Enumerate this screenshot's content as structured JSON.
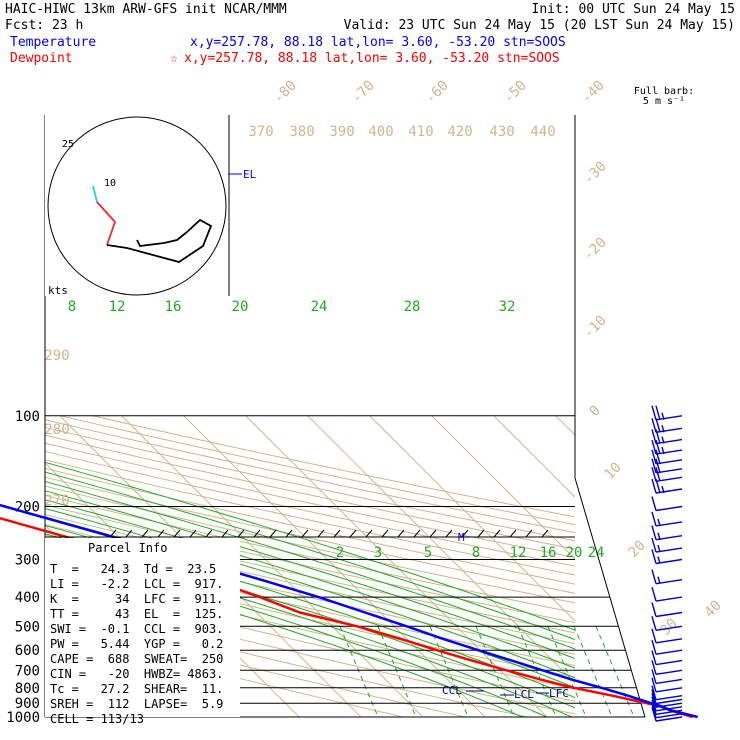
{
  "header": {
    "line1_left": "HAIC-HIWC 13km ARW-GFS init   NCAR/MMM",
    "line1_right": "Init: 00 UTC Sun 24 May 15",
    "line2_left": "Fcst:    23 h",
    "line2_right": "Valid: 23 UTC Sun 24 May 15 (20 LST Sun 24 May 15)",
    "temp_label": "Temperature",
    "temp_info": "x,y=257.78, 88.18   lat,lon=  3.60, -53.20  stn=SOOS",
    "dew_label": "Dewpoint",
    "dew_info": "x,y=257.78, 88.18   lat,lon=  3.60, -53.20  stn=SOOS",
    "star": "☆",
    "temp_color": "#0000ff",
    "dew_color": "#ff0000"
  },
  "barb_legend": {
    "line1": "Full barb:",
    "line2": "5 m s⁻¹"
  },
  "hodograph": {
    "kts_label": "kts",
    "ring_labels": [
      "25",
      "10"
    ]
  },
  "parcel_info": {
    "title": "Parcel Info",
    "rows": [
      "T  =   24.3  Td =  23.5",
      "LI =   -2.2  LCL =  917.",
      "K  =     34  LFC =  911.",
      "TT =     43  EL  =  125.",
      "SWI =  -0.1  CCL =  903.",
      "PW =   5.44  YGP =   0.2",
      "CAPE =  688  SWEAT=  250",
      "CIN =   -20  HWBZ= 4863.",
      "Tc =   27.2  SHEAR=  11.",
      "SREH =  112  LAPSE=  5.9",
      "CELL = 113/13"
    ]
  },
  "level_marks": {
    "el": "EL",
    "m": "M",
    "ccl": "CCL",
    "lcl": "LCL",
    "lfc": "LFC"
  },
  "chart_data": {
    "type": "line",
    "title": "HAIC-HIWC 13km ARW-GFS init   NCAR/MMM",
    "xlabel": "",
    "ylabel": "",
    "pressure_levels": [
      "100",
      "200",
      "300",
      "400",
      "500",
      "600",
      "700",
      "800",
      "900",
      "1000"
    ],
    "isotherm_labels": [
      "-80",
      "-70",
      "-60",
      "-50",
      "-40",
      "-30",
      "-20",
      "-10",
      "0",
      "10",
      "20",
      "30",
      "40"
    ],
    "theta_labels": [
      "370",
      "380",
      "390",
      "400",
      "410",
      "420",
      "430",
      "440",
      "290",
      "280",
      "270"
    ],
    "theta_e_labels": [
      "8",
      "12",
      "16",
      "20",
      "24",
      "28",
      "32"
    ],
    "mixing_ratio_labels": [
      "2",
      "3",
      "5",
      "8",
      "12",
      "16",
      "20",
      "24"
    ],
    "series": [
      {
        "name": "Temperature",
        "color": "#0000ff",
        "points": [
          [
            1000,
            24.3
          ],
          [
            950,
            21.1
          ],
          [
            917,
            20
          ],
          [
            900,
            19
          ],
          [
            850,
            16.5
          ],
          [
            800,
            13.5
          ],
          [
            750,
            10
          ],
          [
            700,
            6.8
          ],
          [
            650,
            3.4
          ],
          [
            600,
            -0.3
          ],
          [
            550,
            -4.2
          ],
          [
            500,
            -8
          ],
          [
            450,
            -12.5
          ],
          [
            400,
            -17.5
          ],
          [
            350,
            -24
          ],
          [
            300,
            -32
          ],
          [
            250,
            -41.5
          ],
          [
            200,
            -53.5
          ],
          [
            175,
            -60.5
          ],
          [
            150,
            -68
          ],
          [
            135,
            -73
          ],
          [
            125,
            -76
          ],
          [
            115,
            -79.5
          ],
          [
            108,
            -78.5
          ],
          [
            100,
            -74
          ]
        ]
      },
      {
        "name": "Dewpoint",
        "color": "#ff0000",
        "points": [
          [
            1000,
            23.5
          ],
          [
            950,
            20.9
          ],
          [
            917,
            19.8
          ],
          [
            900,
            18.3
          ],
          [
            850,
            14
          ],
          [
            800,
            9
          ],
          [
            750,
            5
          ],
          [
            700,
            1
          ],
          [
            650,
            -3
          ],
          [
            600,
            -7
          ],
          [
            550,
            -11
          ],
          [
            500,
            -16
          ],
          [
            450,
            -23
          ],
          [
            400,
            -27
          ],
          [
            350,
            -32
          ],
          [
            300,
            -39
          ],
          [
            250,
            -49
          ],
          [
            200,
            -61
          ],
          [
            175,
            -68
          ],
          [
            150,
            -77
          ],
          [
            135,
            -82
          ],
          [
            125,
            -84
          ],
          [
            115,
            -82.5
          ],
          [
            108,
            -80
          ],
          [
            100,
            -76
          ]
        ]
      }
    ],
    "wind_barbs": [
      {
        "p": 1000,
        "speed": 10
      },
      {
        "p": 975,
        "speed": 10
      },
      {
        "p": 950,
        "speed": 10
      },
      {
        "p": 925,
        "speed": 10
      },
      {
        "p": 900,
        "speed": 10
      },
      {
        "p": 875,
        "speed": 10
      },
      {
        "p": 850,
        "speed": 10
      },
      {
        "p": 800,
        "speed": 10
      },
      {
        "p": 750,
        "speed": 10
      },
      {
        "p": 700,
        "speed": 10
      },
      {
        "p": 650,
        "speed": 10
      },
      {
        "p": 600,
        "speed": 10
      },
      {
        "p": 550,
        "speed": 10
      },
      {
        "p": 500,
        "speed": 10
      },
      {
        "p": 450,
        "speed": 10
      },
      {
        "p": 400,
        "speed": 10
      },
      {
        "p": 350,
        "speed": 5
      },
      {
        "p": 300,
        "speed": 5
      },
      {
        "p": 275,
        "speed": 5
      },
      {
        "p": 250,
        "speed": 5
      },
      {
        "p": 225,
        "speed": 5
      },
      {
        "p": 200,
        "speed": 10
      },
      {
        "p": 175,
        "speed": 15
      },
      {
        "p": 160,
        "speed": 20
      },
      {
        "p": 150,
        "speed": 20
      },
      {
        "p": 140,
        "speed": 20
      },
      {
        "p": 130,
        "speed": 15
      },
      {
        "p": 120,
        "speed": 15
      },
      {
        "p": 110,
        "speed": 15
      },
      {
        "p": 100,
        "speed": 15
      }
    ],
    "hodograph_track": [
      [
        -44,
        20
      ],
      [
        -40,
        4
      ],
      [
        -22,
        -16
      ],
      [
        -30,
        -39
      ],
      [
        -10,
        -42
      ],
      [
        42,
        -56
      ],
      [
        66,
        -40
      ],
      [
        74,
        -20
      ],
      [
        63,
        -14
      ],
      [
        50,
        -26
      ],
      [
        40,
        -34
      ],
      [
        27,
        -37
      ],
      [
        3,
        -40
      ],
      [
        0,
        -34
      ]
    ]
  }
}
